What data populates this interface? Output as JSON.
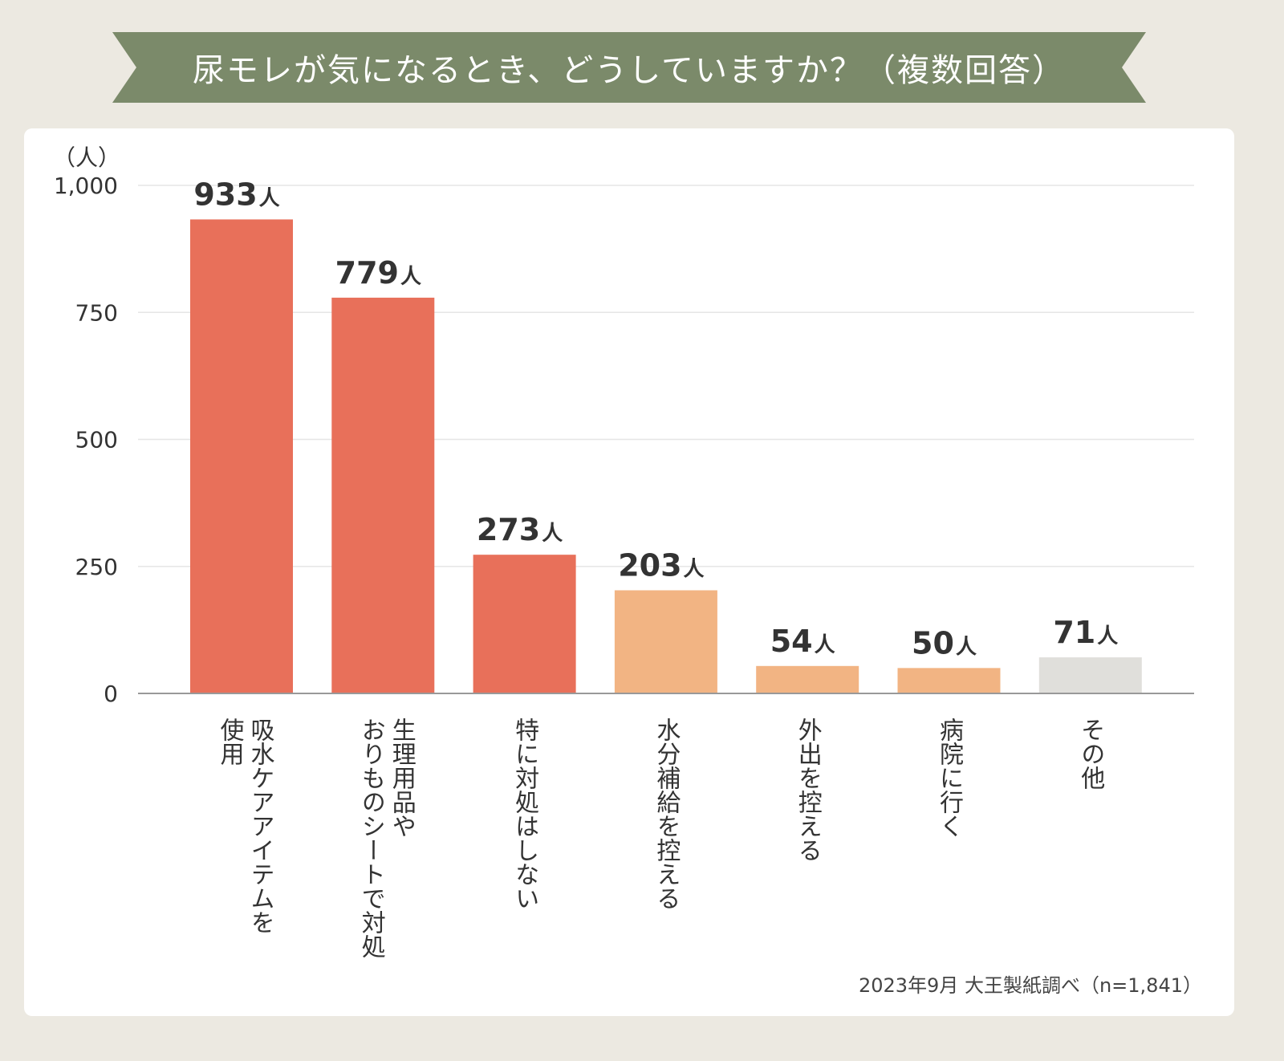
{
  "banner": {
    "title": "尿モレが気になるとき、どうしていますか？（複数回答）",
    "color": "#7B8A6A"
  },
  "colors": {
    "page_background": "#ECE9E1",
    "card_background": "#FFFFFF",
    "text": "#333333",
    "gridline": "#E6E6E6",
    "axis": "#999999"
  },
  "chart_data": {
    "type": "bar",
    "title": "尿モレが気になるとき、どうしていますか？（複数回答）",
    "ylabel": "（人）",
    "xlabel": "",
    "ylim": [
      0,
      1000
    ],
    "yticks": [
      0,
      250,
      500,
      750,
      1000
    ],
    "ytick_labels": [
      "0",
      "250",
      "500",
      "750",
      "1,000"
    ],
    "grid": true,
    "value_suffix": "人",
    "categories": [
      [
        "吸水ケアアイテムを",
        "使用"
      ],
      [
        "生理用品や",
        "おりものシートで対処"
      ],
      [
        "特に対処はしない"
      ],
      [
        "水分補給を控える"
      ],
      [
        "外出を控える"
      ],
      [
        "病院に行く"
      ],
      [
        "その他"
      ]
    ],
    "values": [
      933,
      779,
      273,
      203,
      54,
      50,
      71
    ],
    "value_labels": [
      "933",
      "779",
      "273",
      "203",
      "54",
      "50",
      "71"
    ],
    "bar_colors": [
      "#E8705A",
      "#E8705A",
      "#E8705A",
      "#F2B483",
      "#F2B483",
      "#F2B483",
      "#E0DFDB"
    ]
  },
  "footnote": "2023年9月 大王製紙調べ（n=1,841）"
}
